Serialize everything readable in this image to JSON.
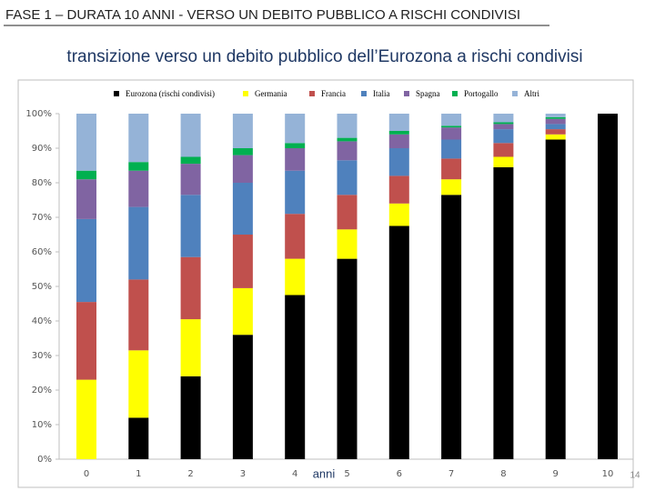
{
  "chart_data": {
    "type": "stacked-bar",
    "title": "FASE 1 – DURATA 10 ANNI - VERSO UN DEBITO PUBBLICO A RISCHI CONDIVISI",
    "subtitle": "transizione verso un debito pubblico dell’Eurozona a rischi condivisi",
    "x_label": "anni",
    "page_number": "14",
    "categories": [
      "0",
      "1",
      "2",
      "3",
      "4",
      "5",
      "6",
      "7",
      "8",
      "9",
      "10"
    ],
    "series": [
      {
        "name": "Eurozona (rischi condivisi)",
        "color": "#000000",
        "values": [
          0,
          12,
          24,
          36,
          47.5,
          58,
          67.5,
          76.5,
          84.5,
          92.5,
          100
        ]
      },
      {
        "name": "Germania",
        "color": "#ffff00",
        "values": [
          23,
          19.5,
          16.5,
          13.5,
          10.5,
          8.5,
          6.5,
          4.5,
          3,
          1.5,
          0
        ]
      },
      {
        "name": "Francia",
        "color": "#c0504d",
        "values": [
          22.5,
          20.5,
          18,
          15.5,
          13,
          10,
          8,
          6,
          4,
          1.5,
          0
        ]
      },
      {
        "name": "Italia",
        "color": "#4f81bd",
        "values": [
          24,
          21,
          18,
          15,
          12.5,
          10,
          8,
          5.5,
          4,
          1.5,
          0
        ]
      },
      {
        "name": "Spagna",
        "color": "#8064a2",
        "values": [
          11.5,
          10.5,
          9,
          8,
          6.5,
          5.5,
          4,
          3.5,
          1.5,
          1.5,
          0
        ]
      },
      {
        "name": "Portogallo",
        "color": "#00b050",
        "values": [
          2.5,
          2.5,
          2,
          2,
          1.5,
          1,
          1,
          0.5,
          0.5,
          0.5,
          0
        ]
      },
      {
        "name": "Altri",
        "color": "#95b3d7",
        "values": [
          16.5,
          14,
          12.5,
          10,
          8.5,
          7,
          5,
          3.5,
          2.5,
          1,
          0
        ]
      }
    ],
    "ylim": [
      0,
      100
    ],
    "yticks": [
      {
        "value": 0,
        "label": "0%"
      },
      {
        "value": 10,
        "label": "10%"
      },
      {
        "value": 20,
        "label": "20%"
      },
      {
        "value": 30,
        "label": "30%"
      },
      {
        "value": 40,
        "label": "40%"
      },
      {
        "value": 50,
        "label": "50%"
      },
      {
        "value": 60,
        "label": "60%"
      },
      {
        "value": 70,
        "label": "70%"
      },
      {
        "value": 80,
        "label": "80%"
      },
      {
        "value": 90,
        "label": "90%"
      },
      {
        "value": 100,
        "label": "100%"
      }
    ],
    "grid": false,
    "legend": "top"
  }
}
